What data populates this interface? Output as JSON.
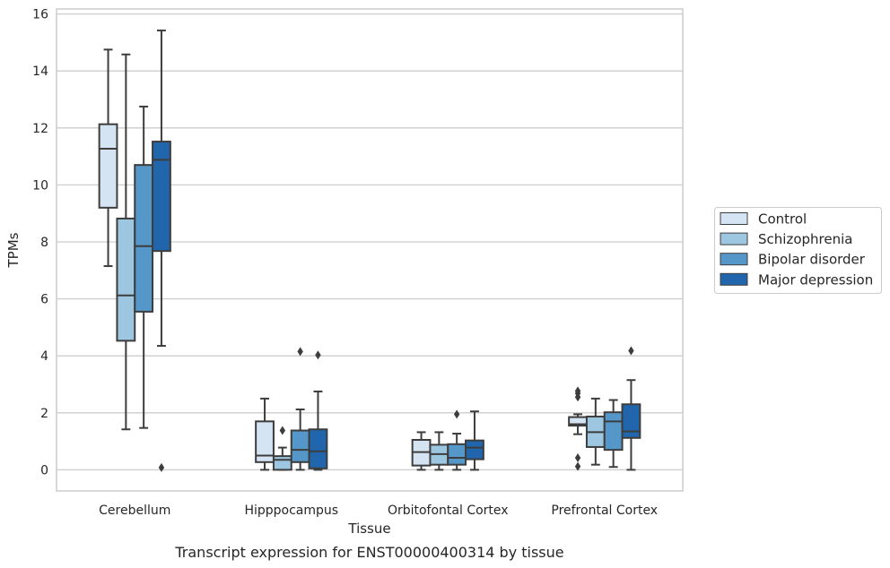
{
  "caption": "Transcript expression for ENST00000400314 by tissue",
  "chart_data": {
    "type": "box",
    "title": "",
    "xlabel": "Tissue",
    "ylabel": "TPMs",
    "ylim": [
      -0.75,
      16.2
    ],
    "yticks": [
      0,
      2,
      4,
      6,
      8,
      10,
      12,
      14,
      16
    ],
    "grid": "horizontal",
    "legend_position": "right",
    "categories": [
      "Cerebellum",
      "Hipppocampus",
      "Orbitofontal Cortex",
      "Prefrontal Cortex"
    ],
    "series": [
      {
        "name": "Control",
        "color": "#d5e4f3",
        "boxes": [
          {
            "whislo": 7.15,
            "q1": 9.2,
            "med": 11.27,
            "q3": 12.13,
            "whishi": 14.75,
            "fliers": []
          },
          {
            "whislo": 0.0,
            "q1": 0.27,
            "med": 0.5,
            "q3": 1.7,
            "whishi": 2.5,
            "fliers": []
          },
          {
            "whislo": 0.0,
            "q1": 0.15,
            "med": 0.62,
            "q3": 1.05,
            "whishi": 1.32,
            "fliers": []
          },
          {
            "whislo": 1.25,
            "q1": 1.55,
            "med": 1.6,
            "q3": 1.85,
            "whishi": 1.95,
            "fliers": [
              0.12,
              0.42,
              2.55,
              2.68,
              2.77
            ]
          }
        ]
      },
      {
        "name": "Schizophrenia",
        "color": "#9dc7e0",
        "boxes": [
          {
            "whislo": 1.42,
            "q1": 4.53,
            "med": 6.12,
            "q3": 8.82,
            "whishi": 14.58,
            "fliers": []
          },
          {
            "whislo": 0.0,
            "q1": 0.0,
            "med": 0.35,
            "q3": 0.48,
            "whishi": 0.78,
            "fliers": [
              1.38
            ]
          },
          {
            "whislo": 0.0,
            "q1": 0.18,
            "med": 0.55,
            "q3": 0.88,
            "whishi": 1.32,
            "fliers": []
          },
          {
            "whislo": 0.18,
            "q1": 0.8,
            "med": 1.32,
            "q3": 1.87,
            "whishi": 2.5,
            "fliers": []
          }
        ]
      },
      {
        "name": "Bipolar disorder",
        "color": "#5597c8",
        "boxes": [
          {
            "whislo": 1.47,
            "q1": 5.55,
            "med": 7.85,
            "q3": 10.7,
            "whishi": 12.75,
            "fliers": []
          },
          {
            "whislo": 0.0,
            "q1": 0.27,
            "med": 0.7,
            "q3": 1.38,
            "whishi": 2.12,
            "fliers": [
              4.15
            ]
          },
          {
            "whislo": 0.0,
            "q1": 0.18,
            "med": 0.42,
            "q3": 0.9,
            "whishi": 1.27,
            "fliers": [
              1.95
            ]
          },
          {
            "whislo": 0.1,
            "q1": 0.7,
            "med": 1.7,
            "q3": 2.02,
            "whishi": 2.45,
            "fliers": []
          }
        ]
      },
      {
        "name": "Major depression",
        "color": "#2166ac",
        "boxes": [
          {
            "whislo": 4.35,
            "q1": 7.68,
            "med": 10.88,
            "q3": 11.52,
            "whishi": 15.42,
            "fliers": [
              0.08
            ]
          },
          {
            "whislo": 0.0,
            "q1": 0.05,
            "med": 0.65,
            "q3": 1.42,
            "whishi": 2.75,
            "fliers": [
              4.03
            ]
          },
          {
            "whislo": 0.0,
            "q1": 0.37,
            "med": 0.78,
            "q3": 1.03,
            "whishi": 2.05,
            "fliers": []
          },
          {
            "whislo": 0.0,
            "q1": 1.12,
            "med": 1.35,
            "q3": 2.3,
            "whishi": 3.15,
            "fliers": [
              4.18
            ]
          }
        ]
      }
    ]
  }
}
